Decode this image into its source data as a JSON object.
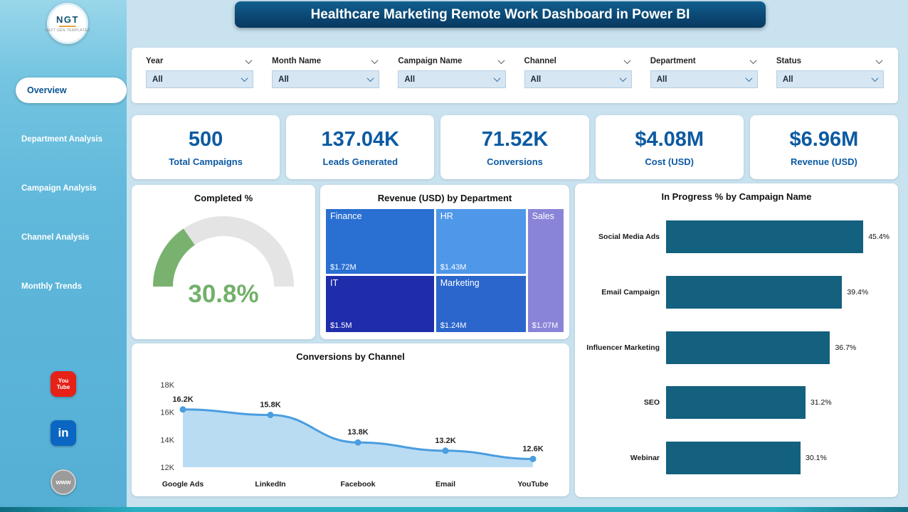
{
  "header": {
    "title": "Healthcare Marketing Remote Work Dashboard in Power BI"
  },
  "sidebar": {
    "logo": {
      "text": "NGT",
      "subtext": "NEXT GEN TEMPLATES"
    },
    "items": [
      {
        "label": "Overview",
        "active": true
      },
      {
        "label": "Department Analysis",
        "active": false
      },
      {
        "label": "Campaign Analysis",
        "active": false
      },
      {
        "label": "Channel Analysis",
        "active": false
      },
      {
        "label": "Monthly Trends",
        "active": false
      }
    ],
    "socials": [
      {
        "label": "You Tube"
      },
      {
        "label": "in"
      },
      {
        "label": "www"
      }
    ]
  },
  "filters": [
    {
      "label": "Year",
      "value": "All"
    },
    {
      "label": "Month Name",
      "value": "All"
    },
    {
      "label": "Campaign Name",
      "value": "All"
    },
    {
      "label": "Channel",
      "value": "All"
    },
    {
      "label": "Department",
      "value": "All"
    },
    {
      "label": "Status",
      "value": "All"
    }
  ],
  "kpis": [
    {
      "value": "500",
      "label": "Total Campaigns"
    },
    {
      "value": "137.04K",
      "label": "Leads Generated"
    },
    {
      "value": "71.52K",
      "label": "Conversions"
    },
    {
      "value": "$4.08M",
      "label": "Cost (USD)"
    },
    {
      "value": "$6.96M",
      "label": "Revenue (USD)"
    }
  ],
  "chart_data": [
    {
      "type": "gauge",
      "title": "Completed %",
      "value": 30.8,
      "max": 100,
      "label": "30.8%",
      "color": "#79b26f",
      "track": "#e4e4e4"
    },
    {
      "type": "treemap",
      "title": "Revenue (USD) by Department",
      "nodes": [
        {
          "name": "Finance",
          "value": 1.72,
          "value_label": "$1.72M",
          "color": "#2a6fd2"
        },
        {
          "name": "HR",
          "value": 1.43,
          "value_label": "$1.43M",
          "color": "#4f97e8"
        },
        {
          "name": "Sales",
          "value": 1.07,
          "value_label": "$1.07M",
          "color": "#8a84d8"
        },
        {
          "name": "IT",
          "value": 1.5,
          "value_label": "$1.5M",
          "color": "#1f2dac"
        },
        {
          "name": "Marketing",
          "value": 1.24,
          "value_label": "$1.24M",
          "color": "#2b66cc"
        }
      ],
      "layout": [
        [
          0,
          3
        ],
        [
          1,
          4
        ],
        [
          2
        ]
      ]
    },
    {
      "type": "bar",
      "title": "In Progress % by Campaign Name",
      "orientation": "horizontal",
      "categories": [
        "Social Media Ads",
        "Email Campaign",
        "Influencer Marketing",
        "SEO",
        "Webinar"
      ],
      "values": [
        45.4,
        39.4,
        36.7,
        31.2,
        30.1
      ],
      "value_labels": [
        "45.4%",
        "39.4%",
        "36.7%",
        "31.2%",
        "30.1%"
      ],
      "xlim": [
        0,
        50
      ],
      "bar_color": "#14607f"
    },
    {
      "type": "line",
      "title": "Conversions by Channel",
      "categories": [
        "Google Ads",
        "LinkedIn",
        "Facebook",
        "Email",
        "YouTube"
      ],
      "values": [
        16.2,
        15.8,
        13.8,
        13.2,
        12.6
      ],
      "value_labels": [
        "16.2K",
        "15.8K",
        "13.8K",
        "13.2K",
        "12.6K"
      ],
      "y_ticks": [
        "18K",
        "16K",
        "14K",
        "12K"
      ],
      "ylim": [
        12,
        18
      ],
      "line_color": "#4a9ddf",
      "area_color": "#b9dcf3"
    }
  ]
}
